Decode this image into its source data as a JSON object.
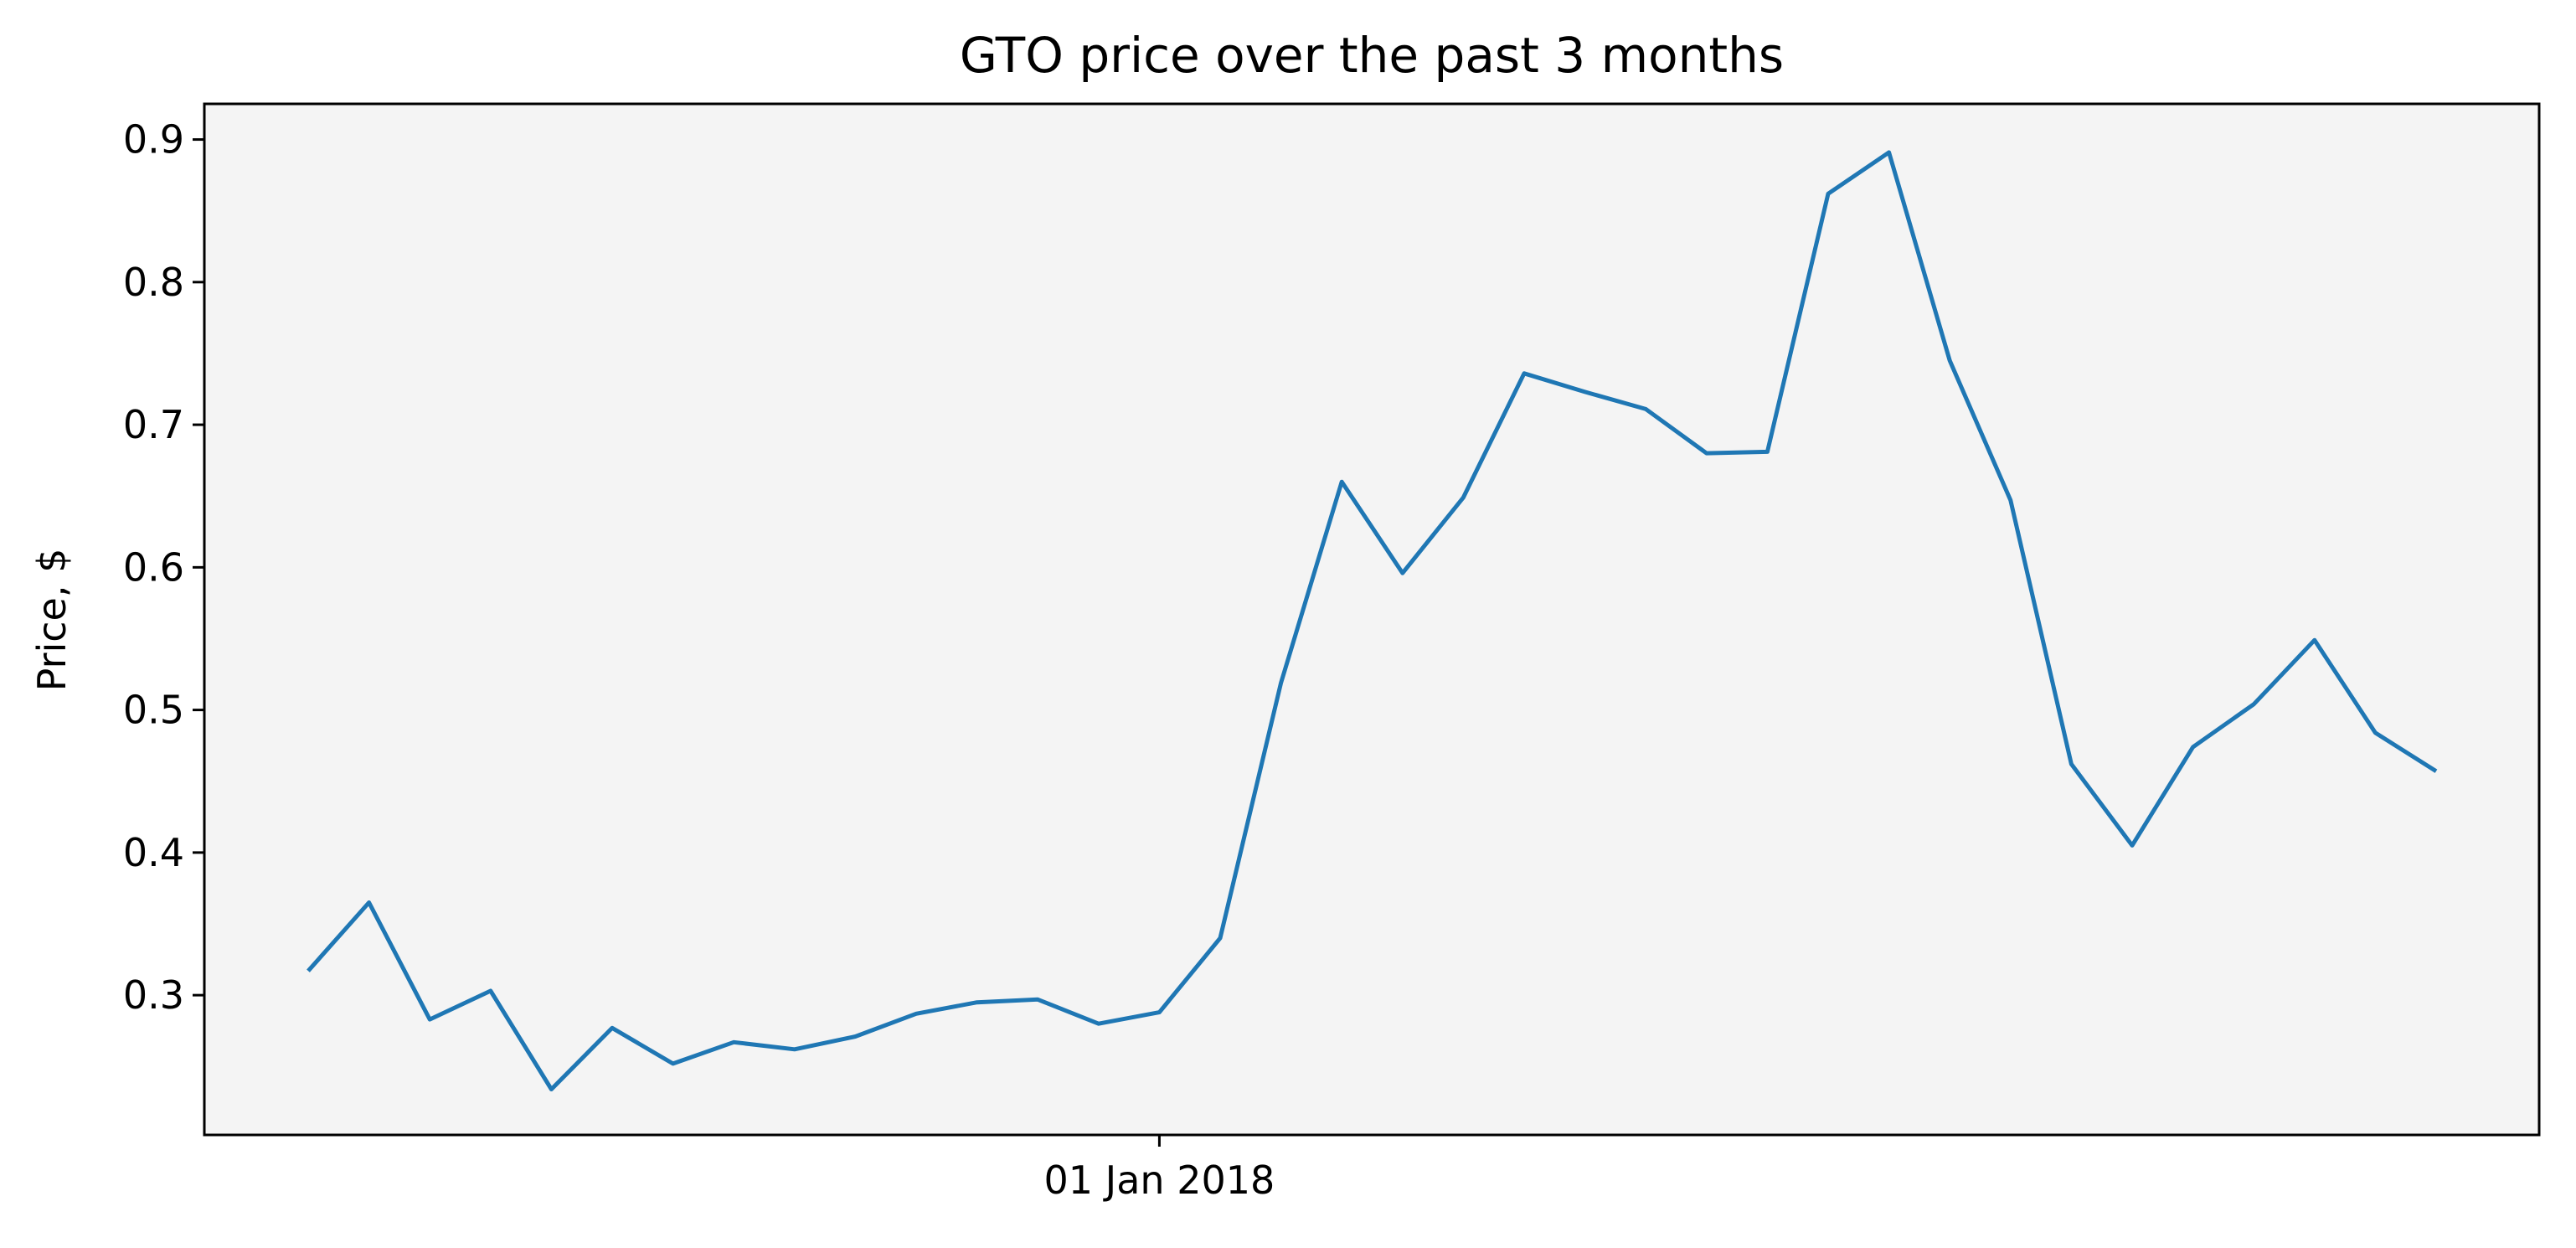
{
  "chart_data": {
    "type": "line",
    "title": "GTO price over the past 3 months",
    "xlabel": "",
    "ylabel": "Price, $",
    "ylim": [
      0.202,
      0.925
    ],
    "grid": false,
    "legend": "none",
    "y_ticks": [
      0.3,
      0.4,
      0.5,
      0.6,
      0.7,
      0.8,
      0.9
    ],
    "y_tick_labels": [
      "0.3",
      "0.4",
      "0.5",
      "0.6",
      "0.7",
      "0.8",
      "0.9"
    ],
    "x_tick_label": "01 Jan 2018",
    "x_tick_index": 14,
    "background_color": "#f4f4f4",
    "series": [
      {
        "color": "#1f77b4",
        "values": [
          0.317,
          0.365,
          0.283,
          0.303,
          0.234,
          0.277,
          0.252,
          0.267,
          0.262,
          0.271,
          0.287,
          0.295,
          0.297,
          0.28,
          0.288,
          0.34,
          0.519,
          0.66,
          0.596,
          0.649,
          0.736,
          0.723,
          0.711,
          0.68,
          0.681,
          0.862,
          0.891,
          0.745,
          0.647,
          0.462,
          0.405,
          0.474,
          0.504,
          0.549,
          0.484,
          0.457
        ]
      }
    ]
  }
}
